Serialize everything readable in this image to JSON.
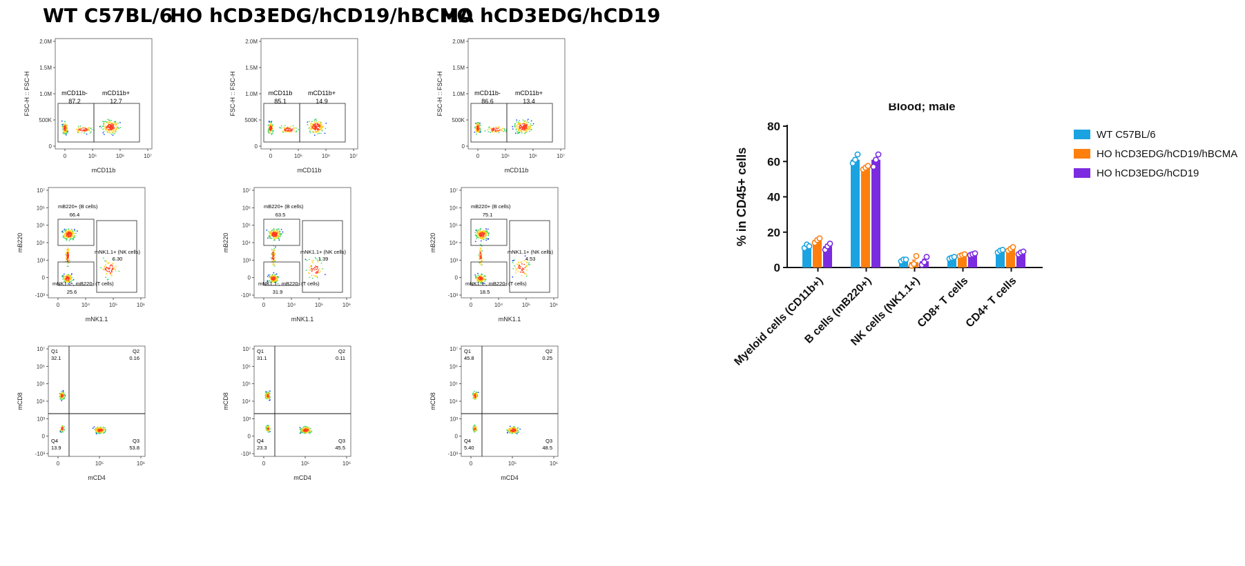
{
  "groups": [
    {
      "title": "WT C57BL/6"
    },
    {
      "title": "HO hCD3EDG/hCD19/hBCMA"
    },
    {
      "title": "HO hCD3EDG/hCD19"
    }
  ],
  "flow_panels": {
    "myeloid": {
      "xlabel": "mCD11b",
      "ylabel": "FSC-H :: FSC-H",
      "yticks": [
        "2.0M",
        "1.5M",
        "1.0M",
        "500K",
        "0"
      ],
      "xticks": [
        "0",
        "10⁵",
        "10⁶",
        "10⁷"
      ],
      "gate_labels": [
        [
          "mCD11b-",
          "mCD11b+"
        ],
        [
          "mCD11b",
          "mCD11b+"
        ],
        [
          "mCD11b-",
          "mCD11b+"
        ]
      ],
      "values": [
        [
          "87.2",
          "12.7"
        ],
        [
          "85.1",
          "14.9"
        ],
        [
          "86.6",
          "13.4"
        ]
      ]
    },
    "nk_b": {
      "xlabel": "mNK1.1",
      "ylabel": "mB220",
      "yticks": [
        "10⁷",
        "10⁶",
        "10⁵",
        "10⁴",
        "10³",
        "0",
        "-10³"
      ],
      "xticks": [
        "0",
        "10⁴",
        "10⁵",
        "10⁶"
      ],
      "b_label": "mB220+ (B cells)",
      "nk_label": "mNK1.1+ (NK cells)",
      "t_label": "mNK1.1-, mB220- (T cells)",
      "b_values": [
        "66.4",
        "63.5",
        "75.1"
      ],
      "nk_values": [
        "6.30",
        "1.39",
        "4.53"
      ],
      "t_values": [
        "25.6",
        "31.9",
        "18.5"
      ]
    },
    "t_cells": {
      "xlabel": "mCD4",
      "ylabel": "mCD8",
      "yticks": [
        "10⁷",
        "10⁶",
        "10⁵",
        "10⁴",
        "10³",
        "0",
        "-10³"
      ],
      "xticks": [
        "0",
        "10⁵",
        "10⁶"
      ],
      "quadrants": [
        "Q1",
        "Q2",
        "Q3",
        "Q4"
      ],
      "values": [
        {
          "q1": "32.1",
          "q2": "0.16",
          "q3": "53.8",
          "q4": "13.9"
        },
        {
          "q1": "31.1",
          "q2": "0.11",
          "q3": "45.5",
          "q4": "23.3"
        },
        {
          "q1": "45.8",
          "q2": "0.25",
          "q3": "48.5",
          "q4": "5.40"
        }
      ]
    }
  },
  "chart_data": {
    "type": "bar",
    "title": "Blood; male",
    "ylabel": "% in CD45+ cells",
    "xlabel": "",
    "ylim": [
      0,
      80
    ],
    "yticks": [
      0,
      20,
      40,
      60,
      80
    ],
    "legend_position": "right",
    "categories": [
      "Myeloid cells (CD11b+)",
      "B cells (mB220+)",
      "NK cells (NK1.1+)",
      "CD8+ T cells",
      "CD4+ T cells"
    ],
    "series": [
      {
        "name": "WT C57BL/6",
        "color": "#1ba3e1",
        "values": [
          12,
          61,
          4,
          5.5,
          9.5
        ],
        "points": [
          [
            11,
            13,
            12
          ],
          [
            59,
            61,
            64
          ],
          [
            3.5,
            4.5,
            4.5
          ],
          [
            5,
            5.5,
            6
          ],
          [
            8.5,
            9.5,
            10
          ]
        ]
      },
      {
        "name": "HO hCD3EDG/hCD19/hBCMA",
        "color": "#ff7f0e",
        "values": [
          15.5,
          56.5,
          3,
          7,
          10.5
        ],
        "points": [
          [
            14,
            15.5,
            16.5
          ],
          [
            55.5,
            56.5,
            57.5
          ],
          [
            1,
            2,
            6.5
          ],
          [
            6.5,
            7,
            7.5
          ],
          [
            9.5,
            10.5,
            11.5
          ]
        ]
      },
      {
        "name": "HO hCD3EDG/hCD19",
        "color": "#7b2be0",
        "values": [
          12,
          61,
          3.5,
          7.5,
          8.5
        ],
        "points": [
          [
            10,
            12,
            13.5
          ],
          [
            57,
            61,
            64
          ],
          [
            1.5,
            3,
            6
          ],
          [
            7,
            7.5,
            8
          ],
          [
            7.5,
            8.5,
            9
          ]
        ]
      }
    ]
  }
}
